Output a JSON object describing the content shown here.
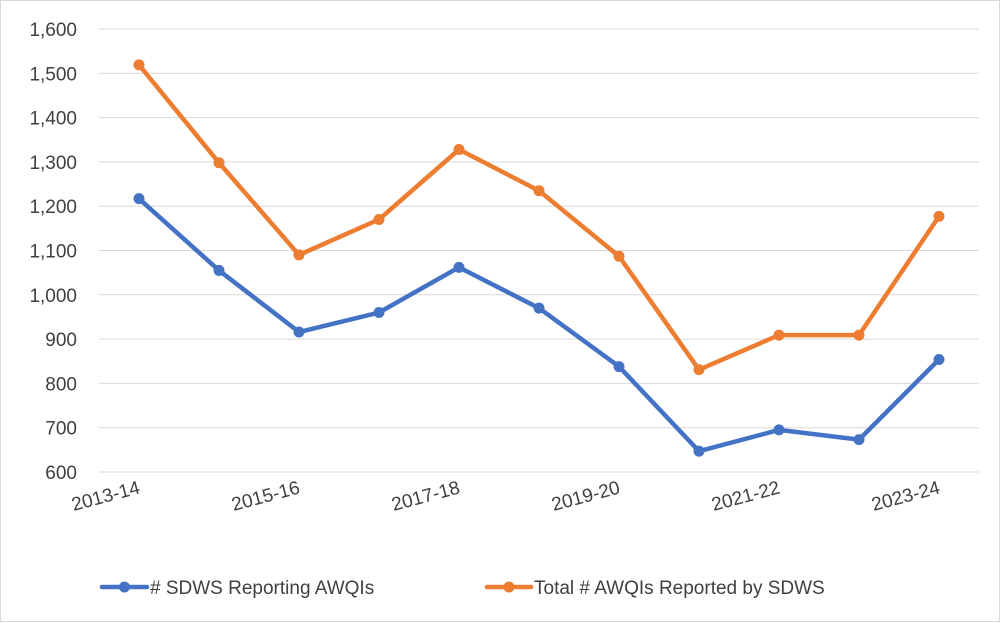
{
  "chart_data": {
    "type": "line",
    "title": "",
    "xlabel": "",
    "ylabel": "",
    "x": [
      "2013-14",
      "2014-15",
      "2015-16",
      "2016-17",
      "2017-18",
      "2018-19",
      "2019-20",
      "2020-21",
      "2021-22",
      "2022-23",
      "2023-24"
    ],
    "x_tick_labels": [
      "2013-14",
      "2015-16",
      "2017-18",
      "2019-20",
      "2021-22",
      "2023-24"
    ],
    "ylim": [
      600,
      1600
    ],
    "y_ticks": [
      600,
      700,
      800,
      900,
      1000,
      1100,
      1200,
      1300,
      1400,
      1500,
      1600
    ],
    "y_tick_labels": [
      "600",
      "700",
      "800",
      "900",
      "1,000",
      "1,100",
      "1,200",
      "1,300",
      "1,400",
      "1,500",
      "1,600"
    ],
    "grid": "horizontal",
    "legend_position": "bottom",
    "series": [
      {
        "name": "# SDWS Reporting AWQIs",
        "color": "#4472c4",
        "values": [
          1217,
          1055,
          916,
          960,
          1062,
          970,
          838,
          647,
          695,
          673,
          854
        ]
      },
      {
        "name": "Total # AWQIs Reported by SDWS",
        "color": "#ed7d31",
        "values": [
          1519,
          1298,
          1090,
          1170,
          1328,
          1235,
          1087,
          831,
          909,
          909,
          1177
        ]
      }
    ]
  }
}
